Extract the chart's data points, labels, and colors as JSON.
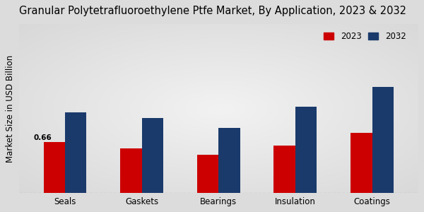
{
  "title": "Granular Polytetrafluoroethylene Ptfe Market, By Application, 2023 & 2032",
  "ylabel": "Market Size in USD Billion",
  "categories": [
    "Seals",
    "Gaskets",
    "Bearings",
    "Insulation",
    "Coatings"
  ],
  "values_2023": [
    0.66,
    0.58,
    0.5,
    0.62,
    0.78
  ],
  "values_2032": [
    1.05,
    0.98,
    0.85,
    1.12,
    1.38
  ],
  "color_2023": "#cc0000",
  "color_2032": "#1a3a6b",
  "annotation_text": "0.66",
  "annotation_bar": 0,
  "background_color": "#e0e0e0",
  "bar_width": 0.28,
  "ylim": [
    0,
    2.2
  ],
  "legend_labels": [
    "2023",
    "2032"
  ],
  "title_fontsize": 10.5,
  "axis_label_fontsize": 8.5,
  "tick_fontsize": 8.5
}
